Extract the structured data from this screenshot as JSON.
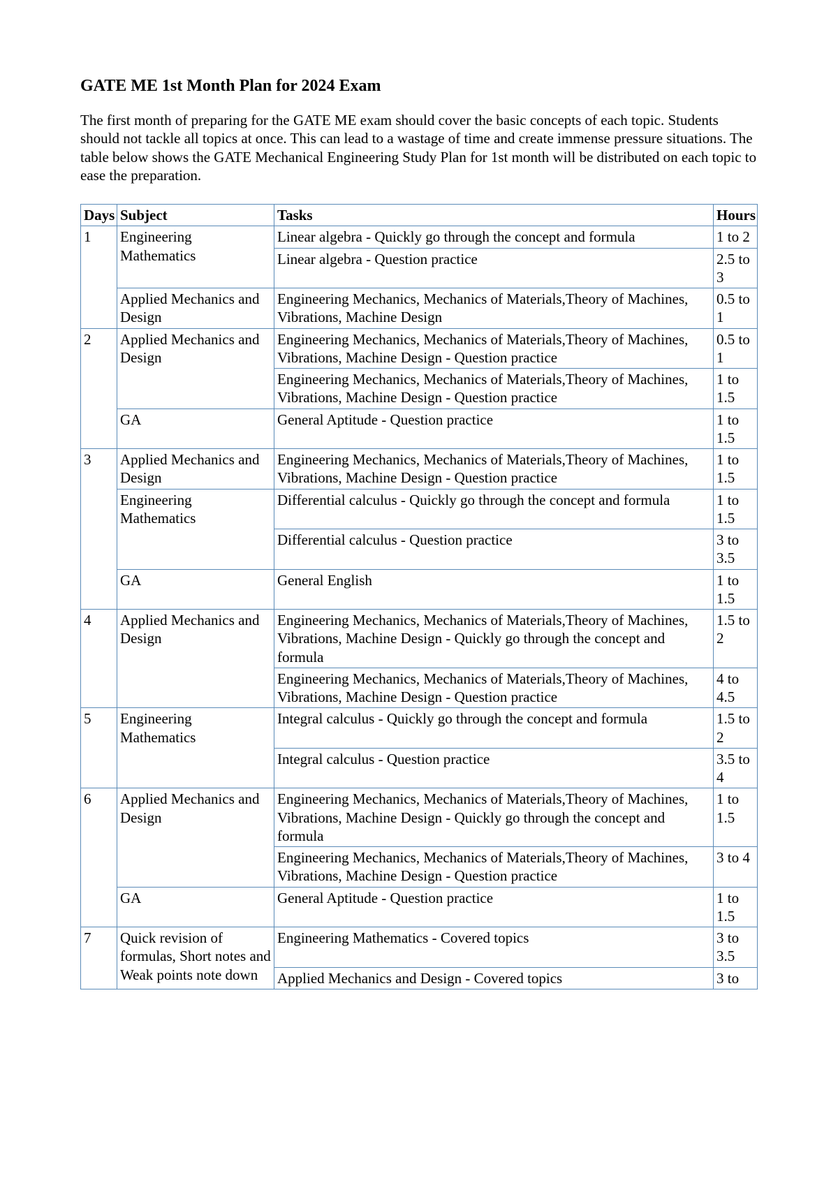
{
  "title": "GATE ME 1st Month Plan for 2024 Exam",
  "intro": "The first month of preparing for the GATE ME exam should cover the basic concepts of each topic. Students should not tackle all topics at once. This can lead to a wastage of time and create immense pressure situations. The table below shows the GATE Mechanical Engineering Study Plan for 1st month will be distributed on each topic to ease the preparation.",
  "table": {
    "headers": {
      "days": "Days",
      "subject": "Subject",
      "tasks": "Tasks",
      "hours": "Hours"
    },
    "rows": [
      {
        "day": "1",
        "day_rowspan": 3,
        "subject": "Engineering Mathematics",
        "subject_rowspan": 2,
        "task": "Linear algebra - Quickly go through the concept and formula",
        "hours": "1 to 2"
      },
      {
        "task": "Linear algebra - Question practice",
        "hours": "2.5 to 3"
      },
      {
        "subject": "Applied Mechanics and Design",
        "subject_rowspan": 1,
        "task": "Engineering Mechanics, Mechanics of Materials,Theory of Machines, Vibrations, Machine Design",
        "hours": "0.5 to 1"
      },
      {
        "day": "2",
        "day_rowspan": 3,
        "subject": "Applied Mechanics and Design",
        "subject_rowspan": 2,
        "task": "Engineering Mechanics, Mechanics of Materials,Theory of Machines, Vibrations, Machine Design - Question practice",
        "hours": "0.5 to 1"
      },
      {
        "task": "Engineering Mechanics, Mechanics of Materials,Theory of Machines, Vibrations, Machine Design - Question practice",
        "hours": "1 to 1.5"
      },
      {
        "subject": "GA",
        "subject_rowspan": 1,
        "task": "General Aptitude - Question practice",
        "hours": "1 to 1.5"
      },
      {
        "day": "3",
        "day_rowspan": 4,
        "subject": "Applied Mechanics and Design",
        "subject_rowspan": 1,
        "task": "Engineering Mechanics, Mechanics of Materials,Theory of Machines, Vibrations, Machine Design - Question practice",
        "hours": "1 to 1.5"
      },
      {
        "subject": "Engineering Mathematics",
        "subject_rowspan": 2,
        "task": "Differential calculus - Quickly go through the concept and formula",
        "hours": "1 to 1.5"
      },
      {
        "task": "Differential calculus - Question practice",
        "hours": "3 to 3.5"
      },
      {
        "subject": "GA",
        "subject_rowspan": 1,
        "task": "General English",
        "hours": "1 to 1.5"
      },
      {
        "day": "4",
        "day_rowspan": 2,
        "subject": "Applied Mechanics and Design",
        "subject_rowspan": 2,
        "task": "Engineering Mechanics, Mechanics of Materials,Theory of Machines, Vibrations, Machine Design - Quickly go through the concept and formula",
        "hours": "1.5 to 2"
      },
      {
        "task": "Engineering Mechanics, Mechanics of Materials,Theory of Machines, Vibrations, Machine Design - Question practice",
        "hours": "4 to 4.5"
      },
      {
        "day": "5",
        "day_rowspan": 2,
        "subject": "Engineering Mathematics",
        "subject_rowspan": 2,
        "task": "Integral calculus - Quickly go through the concept and formula",
        "hours": "1.5 to 2"
      },
      {
        "task": "Integral calculus - Question practice",
        "hours": "3.5 to 4"
      },
      {
        "day": "6",
        "day_rowspan": 3,
        "subject": "Applied Mechanics and Design",
        "subject_rowspan": 2,
        "task": "Engineering Mechanics, Mechanics of Materials,Theory of Machines, Vibrations, Machine Design - Quickly go through the concept and formula",
        "hours": "1 to 1.5"
      },
      {
        "task": "Engineering Mechanics, Mechanics of Materials,Theory of Machines, Vibrations, Machine Design - Question practice",
        "hours": "3 to 4"
      },
      {
        "subject": "GA",
        "subject_rowspan": 1,
        "task": "General Aptitude - Question practice",
        "hours": "1 to 1.5"
      },
      {
        "day": "7",
        "day_rowspan": 2,
        "subject": "Quick revision of formulas, Short notes and Weak points note down",
        "subject_rowspan": 2,
        "task": "Engineering Mathematics - Covered topics",
        "hours": "3 to 3.5"
      },
      {
        "task": "Applied Mechanics and Design - Covered topics",
        "hours": "3 to"
      }
    ]
  },
  "style": {
    "border_color": "#5b8bb8",
    "background_color": "#ffffff",
    "text_color": "#000000",
    "font_family": "Times New Roman",
    "heading_fontsize": 24,
    "body_fontsize": 21
  }
}
